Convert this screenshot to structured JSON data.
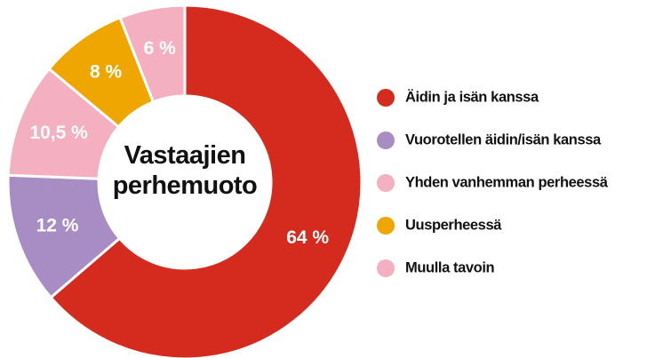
{
  "chart_data": {
    "type": "donut",
    "title": "Vastaajien perhemuoto",
    "categories": [
      "Äidin ja isän kanssa",
      "Vuorotellen äidin/isän kanssa",
      "Yhden vanhemman perheessä",
      "Uusperheessä",
      "Muulla tavoin"
    ],
    "values": [
      64,
      12,
      10.5,
      8,
      6
    ],
    "value_labels": [
      "64 %",
      "12 %",
      "10,5 %",
      "8 %",
      "6 %"
    ],
    "colors": [
      "#d52b1e",
      "#a88cc4",
      "#f4afc0",
      "#efa600",
      "#f4afc0"
    ],
    "legend": "right"
  }
}
